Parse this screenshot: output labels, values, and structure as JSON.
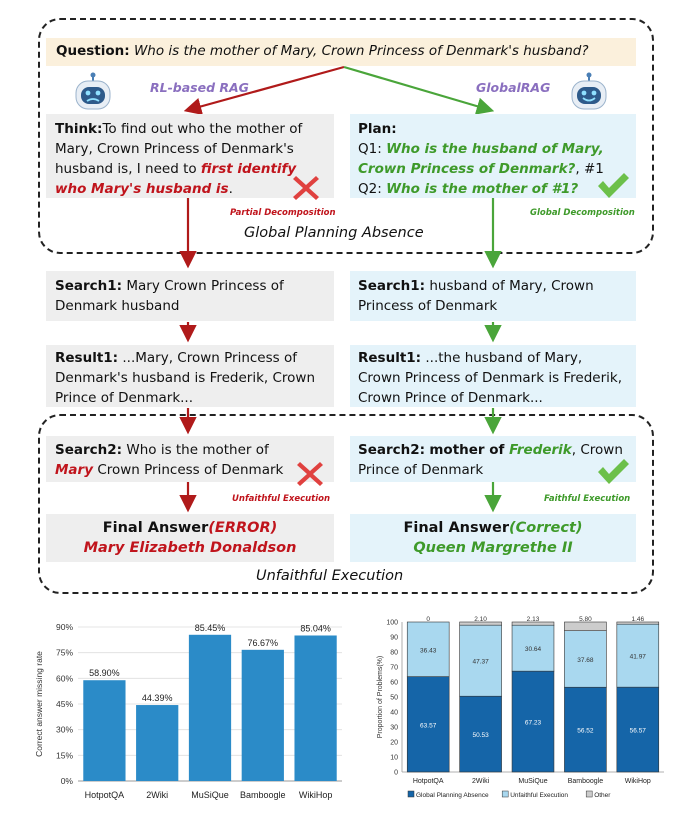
{
  "question": {
    "label": "Question:",
    "text": "Who is the mother of Mary, Crown Princess of Denmark's husband?"
  },
  "methods": {
    "left": "RL-based RAG",
    "right": "GlobalRAG"
  },
  "think": {
    "label": "Think:",
    "line1": "To find out who the mother of",
    "line2": "Mary, Crown Princess of Denmark's",
    "line3a": "husband is, I need to ",
    "line3b": "first identify",
    "line4": "who Mary's husband is",
    "line4end": "."
  },
  "plan": {
    "label": "Plan:",
    "q1_prefix": "Q1:",
    "q1_line1": "Who is the husband of Mary,",
    "q1_line2": "Crown Princess of Denmark?",
    "q1_suffix": ", #1",
    "q2_prefix": "Q2:",
    "q2_text": "Who is the mother of #1?"
  },
  "tags": {
    "partial": "Partial Decomposition",
    "global": "Global Decomposition",
    "unfaithful": "Unfaithful Execution",
    "faithful": "Faithful Execution"
  },
  "section_titles": {
    "planning": "Global Planning Absence",
    "execution": "Unfaithful Execution"
  },
  "left_steps": {
    "search1_label": "Search1:",
    "search1_l1": "Mary Crown Princess of",
    "search1_l2": "Denmark husband",
    "result1_label": "Result1:",
    "result1_l1": "...Mary, Crown Princess of",
    "result1_l2": "Denmark's husband is Frederik, Crown",
    "result1_l3": "Prince of Denmark...",
    "search2_label": "Search2:",
    "search2_l1": "Who is the mother of",
    "search2_l2a": "Mary",
    "search2_l2b": "Crown Princess of Denmark",
    "final_label": "Final Answer",
    "final_status": "(ERROR)",
    "final_answer": "Mary Elizabeth Donaldson"
  },
  "right_steps": {
    "search1_label": "Search1:",
    "search1_l1": "husband of Mary, Crown",
    "search1_l2": "Princess of Denmark",
    "result1_label": "Result1:",
    "result1_l1": "...the husband of Mary,",
    "result1_l2": "Crown Princess of Denmark is Frederik,",
    "result1_l3": "Crown Prince of Denmark...",
    "search2_label": "Search2:",
    "search2_l1a": "mother of ",
    "search2_l1b": "Frederik",
    "search2_l1c": ", Crown",
    "search2_l2": "Prince of Denmark",
    "final_label": "Final Answer",
    "final_status": "(Correct)",
    "final_answer": "Queen Margrethe II"
  },
  "colors": {
    "red": "#c0141c",
    "green": "#3e9a2a",
    "bar_blue": "#2b8bc8",
    "dark_blue": "#1565a8",
    "light_blue": "#a9d8ef",
    "gray": "#cccccc"
  },
  "chart_data": [
    {
      "type": "bar",
      "title": "",
      "ylabel": "Correct answer missing rate",
      "categories": [
        "HotpotQA",
        "2Wiki",
        "MuSiQue",
        "Bamboogle",
        "WikiHop"
      ],
      "values": [
        58.9,
        44.39,
        85.45,
        76.67,
        85.04
      ],
      "value_labels": [
        "58.90%",
        "44.39%",
        "85.45%",
        "76.67%",
        "85.04%"
      ],
      "yticks": [
        "0%",
        "15%",
        "30%",
        "45%",
        "60%",
        "75%",
        "90%"
      ],
      "ylim": [
        0,
        90
      ]
    },
    {
      "type": "bar",
      "stacked": true,
      "ylabel": "Proportion of Problems(%)",
      "categories": [
        "HotpotQA",
        "2Wiki",
        "MuSiQue",
        "Bamboogle",
        "WikiHop"
      ],
      "yticks": [
        "0",
        "10",
        "20",
        "30",
        "40",
        "50",
        "60",
        "70",
        "80",
        "90",
        "100"
      ],
      "ylim": [
        0,
        100
      ],
      "series": [
        {
          "name": "Global Planning Absence",
          "values": [
            63.57,
            50.53,
            67.23,
            56.52,
            56.57
          ],
          "labels": [
            "63.57",
            "50.53",
            "67.23",
            "56.52",
            "56.57"
          ]
        },
        {
          "name": "Unfaithful Execution",
          "values": [
            36.43,
            47.37,
            30.64,
            37.68,
            41.97
          ],
          "labels": [
            "36.43",
            "47.37",
            "30.64",
            "37.68",
            "41.97"
          ]
        },
        {
          "name": "Other",
          "values": [
            0,
            2.1,
            2.13,
            5.8,
            1.46
          ],
          "labels": [
            "0",
            "2.10",
            "2.13",
            "5.80",
            "1.46"
          ]
        }
      ],
      "legend": "bottom"
    }
  ]
}
